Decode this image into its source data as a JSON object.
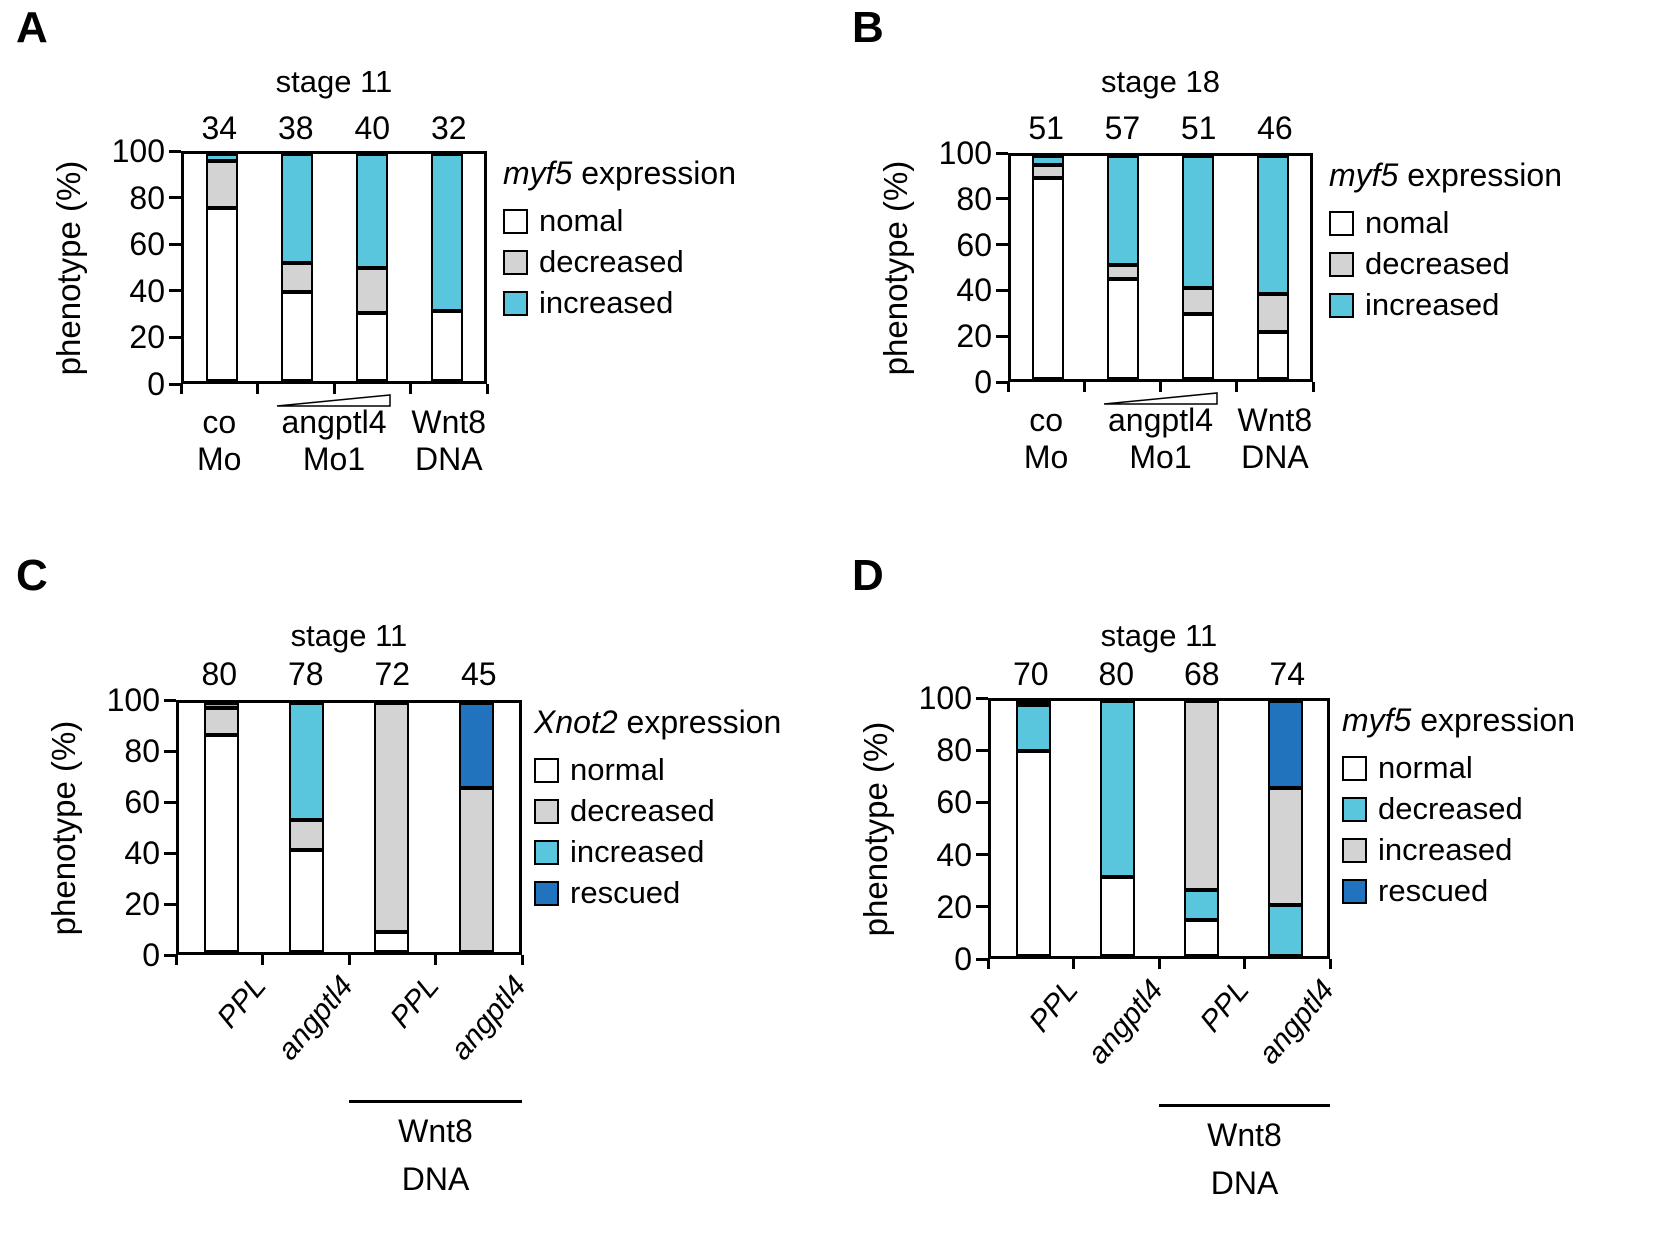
{
  "figure": {
    "background": "#FFFFFF",
    "description_visible_text_only": true
  },
  "colors": {
    "white": "#FFFFFF",
    "gray": "#D3D3D3",
    "cyan": "#5AC6DD",
    "blue": "#2173BD",
    "black": "#000000"
  },
  "chart_data": [
    {
      "panel": "A",
      "type": "bar",
      "stacked": true,
      "title": "stage 11",
      "ylabel": "phenotype (%)",
      "ylim": [
        0,
        100
      ],
      "yticks": [
        0,
        20,
        40,
        60,
        80,
        100
      ],
      "grid": false,
      "legend_position": "right",
      "counts_above_bars": [
        34,
        38,
        40,
        32
      ],
      "legend_title": {
        "gene_italic": "myf5",
        "rest": " expression"
      },
      "legend": [
        {
          "label": "nomal",
          "color_key": "white"
        },
        {
          "label": "decreased",
          "color_key": "gray"
        },
        {
          "label": "increased",
          "color_key": "cyan"
        }
      ],
      "series": [
        {
          "name": "normal",
          "color_key": "white",
          "values": [
            76,
            39,
            30,
            31
          ]
        },
        {
          "name": "decreased",
          "color_key": "gray",
          "values": [
            21,
            13,
            20,
            0
          ]
        },
        {
          "name": "increased",
          "color_key": "cyan",
          "values": [
            3,
            48,
            50,
            69
          ]
        }
      ],
      "x_groups": [
        {
          "lines": [
            "co",
            "Mo"
          ],
          "center_fraction": 0.125,
          "ramp": false
        },
        {
          "lines": [
            "angptl4",
            "Mo1"
          ],
          "center_fraction": 0.5,
          "ramp": true
        },
        {
          "lines": [
            "Wnt8",
            "DNA"
          ],
          "center_fraction": 0.875,
          "ramp": false
        }
      ]
    },
    {
      "panel": "B",
      "type": "bar",
      "stacked": true,
      "title": "stage 18",
      "ylabel": "phenotype (%)",
      "ylim": [
        0,
        100
      ],
      "yticks": [
        0,
        20,
        40,
        60,
        80,
        100
      ],
      "grid": false,
      "legend_position": "right",
      "counts_above_bars": [
        51,
        57,
        51,
        46
      ],
      "legend_title": {
        "gene_italic": "myf5",
        "rest": " expression"
      },
      "legend": [
        {
          "label": "nomal",
          "color_key": "white"
        },
        {
          "label": "decreased",
          "color_key": "gray"
        },
        {
          "label": "increased",
          "color_key": "cyan"
        }
      ],
      "series": [
        {
          "name": "normal",
          "color_key": "white",
          "values": [
            90,
            45,
            29,
            21
          ]
        },
        {
          "name": "decreased",
          "color_key": "gray",
          "values": [
            6,
            6,
            12,
            17
          ]
        },
        {
          "name": "increased",
          "color_key": "cyan",
          "values": [
            4,
            49,
            59,
            62
          ]
        }
      ],
      "x_groups": [
        {
          "lines": [
            "co",
            "Mo"
          ],
          "center_fraction": 0.125,
          "ramp": false
        },
        {
          "lines": [
            "angptl4",
            "Mo1"
          ],
          "center_fraction": 0.5,
          "ramp": true
        },
        {
          "lines": [
            "Wnt8",
            "DNA"
          ],
          "center_fraction": 0.875,
          "ramp": false
        }
      ]
    },
    {
      "panel": "C",
      "type": "bar",
      "stacked": true,
      "title": "stage 11",
      "ylabel": "phenotype (%)",
      "ylim": [
        0,
        100
      ],
      "yticks": [
        0,
        20,
        40,
        60,
        80,
        100
      ],
      "grid": false,
      "legend_position": "right",
      "counts_above_bars": [
        80,
        78,
        72,
        45
      ],
      "legend_title": {
        "gene_italic": "Xnot2",
        "rest": " expression"
      },
      "legend": [
        {
          "label": "normal",
          "color_key": "white"
        },
        {
          "label": "decreased",
          "color_key": "gray"
        },
        {
          "label": "increased",
          "color_key": "cyan"
        },
        {
          "label": "rescued",
          "color_key": "blue"
        }
      ],
      "series": [
        {
          "name": "normal",
          "color_key": "white",
          "values": [
            87,
            41,
            8,
            0
          ]
        },
        {
          "name": "decreased",
          "color_key": "gray",
          "values": [
            11,
            12,
            92,
            66
          ]
        },
        {
          "name": "increased",
          "color_key": "cyan",
          "values": [
            2,
            47,
            0,
            0
          ]
        },
        {
          "name": "rescued",
          "color_key": "blue",
          "values": [
            0,
            0,
            0,
            34
          ]
        }
      ],
      "x_labels_rotated": [
        "PPL",
        "angptl4",
        "PPL",
        "angptl4"
      ],
      "x_group_underline": {
        "lines": [
          "Wnt8",
          "DNA"
        ],
        "span_fraction": [
          0.5,
          1.0
        ]
      }
    },
    {
      "panel": "D",
      "type": "bar",
      "stacked": true,
      "title": "stage 11",
      "ylabel": "phenotype (%)",
      "ylim": [
        0,
        100
      ],
      "yticks": [
        0,
        20,
        40,
        60,
        80,
        100
      ],
      "grid": false,
      "legend_position": "right",
      "counts_above_bars": [
        70,
        80,
        68,
        74
      ],
      "legend_title": {
        "gene_italic": "myf5",
        "rest": " expression"
      },
      "legend": [
        {
          "label": "normal",
          "color_key": "white"
        },
        {
          "label": "decreased",
          "color_key": "cyan"
        },
        {
          "label": "increased",
          "color_key": "gray"
        },
        {
          "label": "rescued",
          "color_key": "blue"
        }
      ],
      "series": [
        {
          "name": "normal",
          "color_key": "white",
          "values": [
            81,
            31,
            14,
            0
          ]
        },
        {
          "name": "decreased",
          "color_key": "cyan",
          "values": [
            18,
            69,
            12,
            20
          ]
        },
        {
          "name": "increased",
          "color_key": "gray",
          "values": [
            1,
            0,
            74,
            46
          ]
        },
        {
          "name": "rescued",
          "color_key": "blue",
          "values": [
            0,
            0,
            0,
            34
          ]
        }
      ],
      "x_labels_rotated": [
        "PPL",
        "angptl4",
        "PPL",
        "angptl4"
      ],
      "x_group_underline": {
        "lines": [
          "Wnt8",
          "DNA"
        ],
        "span_fraction": [
          0.5,
          1.0
        ]
      }
    }
  ]
}
